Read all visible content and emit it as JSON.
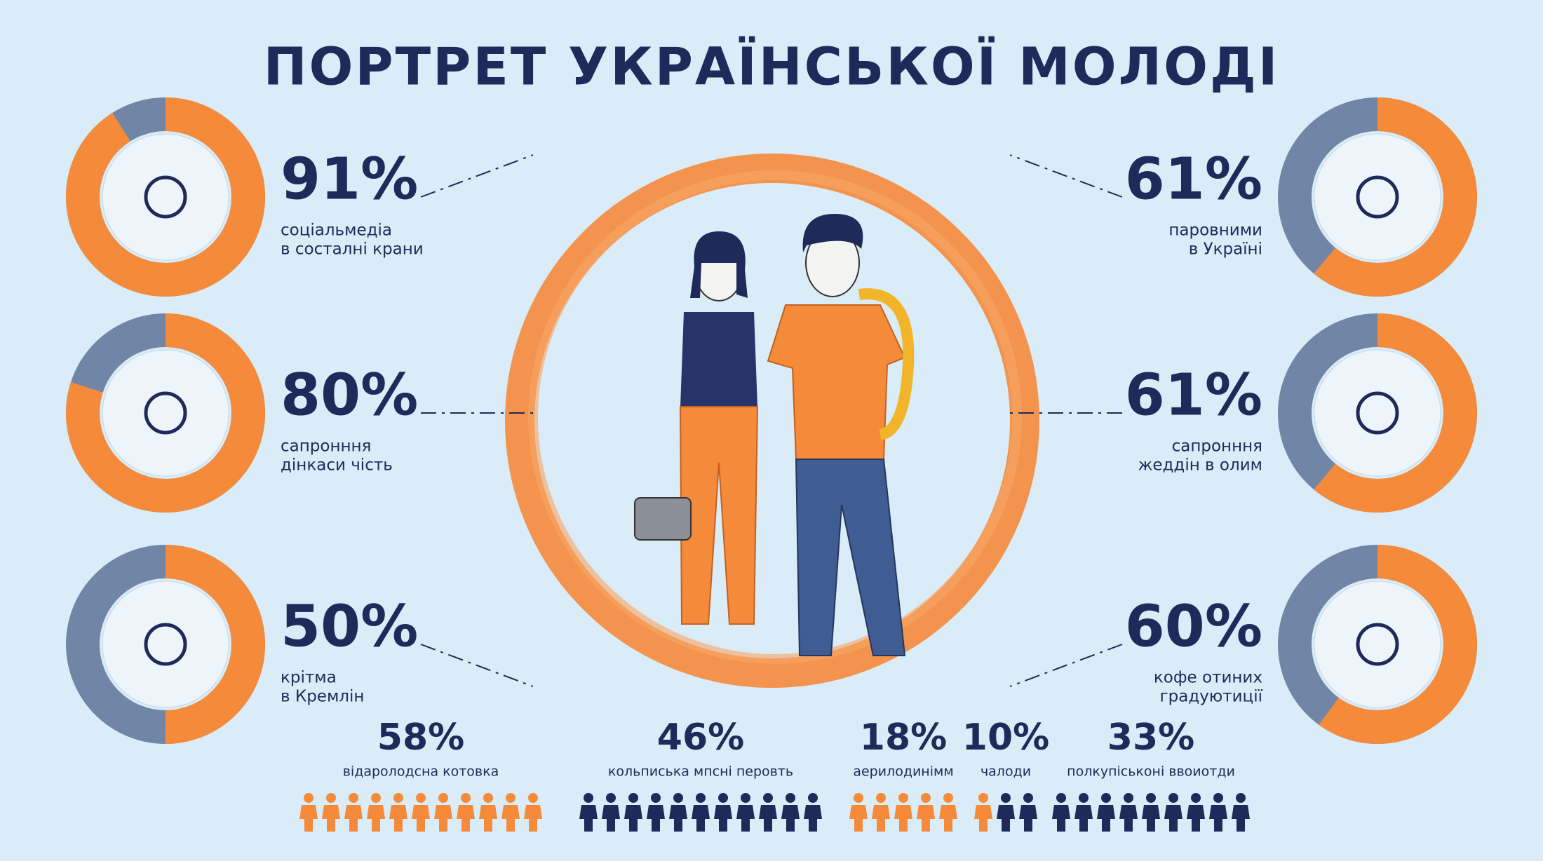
{
  "title": "ПОРТРЕТ УКРАЇНСЬКОЇ МОЛОДІ",
  "left_stats": [
    {
      "value": 91,
      "label": "91%",
      "lines": [
        "соціальмедіа",
        "в состалні крани"
      ]
    },
    {
      "value": 80,
      "label": "80%",
      "lines": [
        "сапронння",
        "дінкаси чість"
      ]
    },
    {
      "value": 50,
      "label": "50%",
      "lines": [
        "крітма",
        "в Кремлін"
      ]
    }
  ],
  "right_stats": [
    {
      "value": 61,
      "label": "61%",
      "lines": [
        "паровними",
        "в Україні"
      ]
    },
    {
      "value": 61,
      "label": "61%",
      "lines": [
        "сапронння",
        "жеддін в олим"
      ]
    },
    {
      "value": 60,
      "label": "60%",
      "lines": [
        "кофе отиних",
        "градуютиції"
      ]
    }
  ],
  "bottom_stats": [
    {
      "value": "58%",
      "label": "відаролодсна котовка"
    },
    {
      "value": "46%",
      "label": "кольписька мпсні перовть"
    },
    {
      "value": "18%",
      "label": "аерилодинімм"
    },
    {
      "value": "10%",
      "label": "чалоди"
    },
    {
      "value": "33%",
      "label": "полкупіськоні ввоиотди"
    }
  ]
}
